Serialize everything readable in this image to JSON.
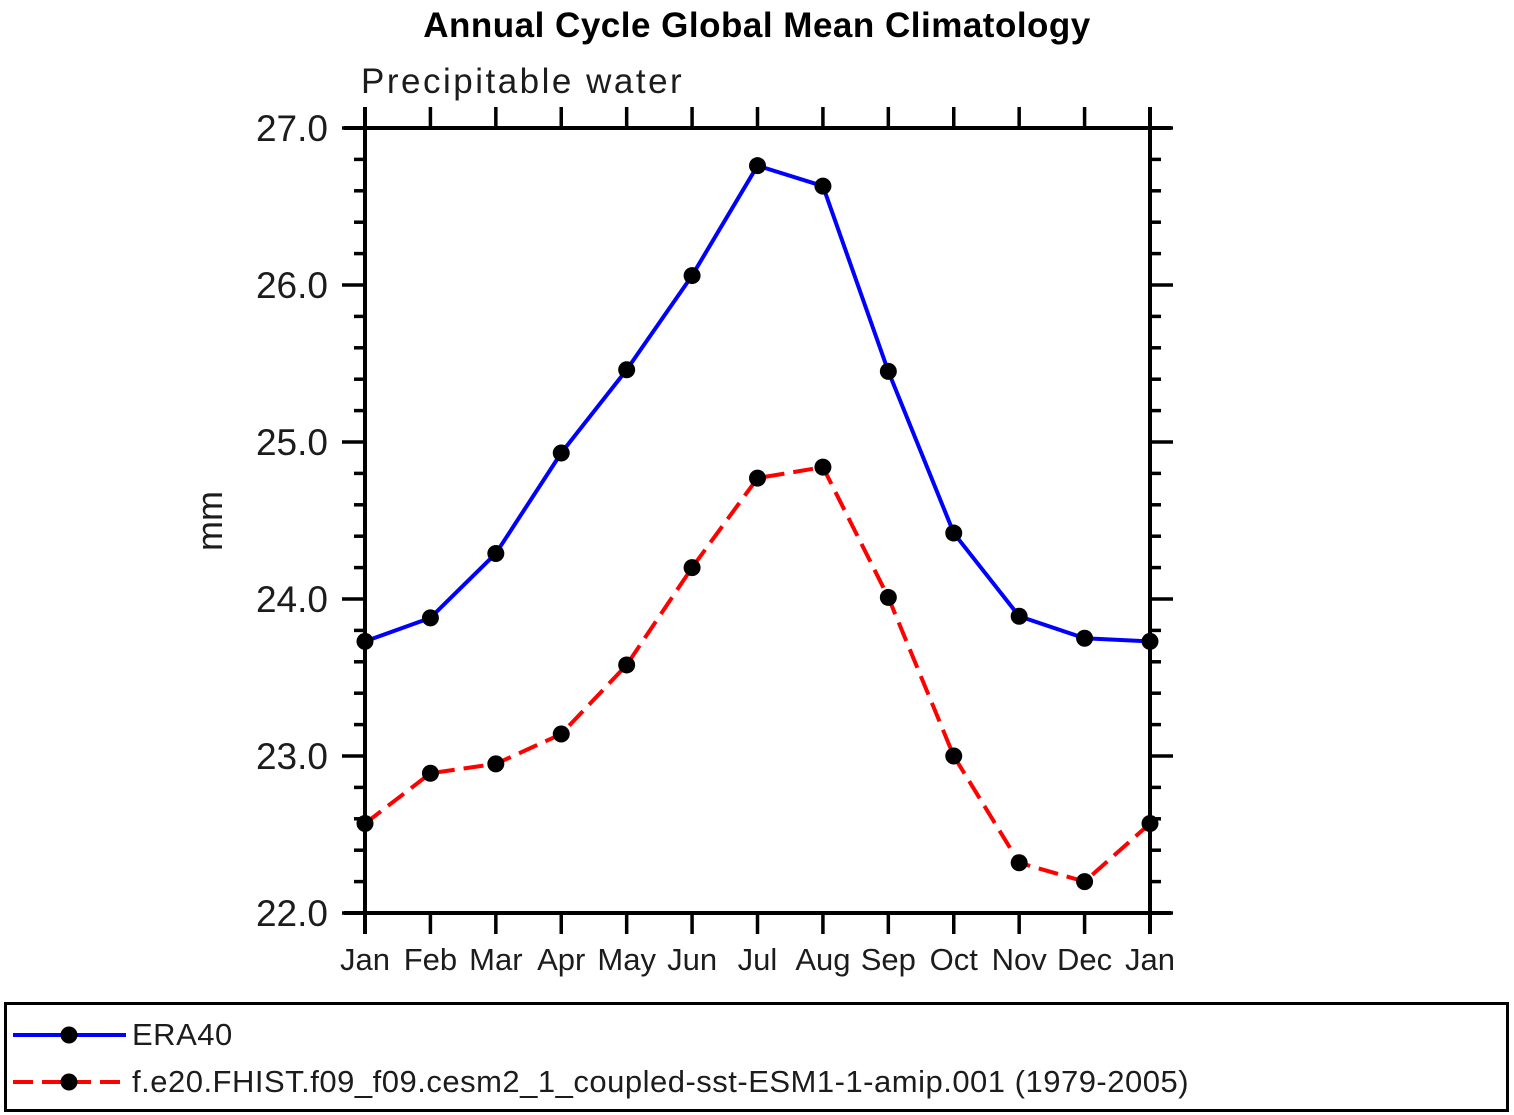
{
  "page_title": "Annual Cycle Global Mean Climatology",
  "chart_data": {
    "type": "line",
    "title": "Annual Cycle Global Mean Climatology",
    "subtitle": "Precipitable water",
    "ylabel": "mm",
    "x_categories": [
      "Jan",
      "Feb",
      "Mar",
      "Apr",
      "May",
      "Jun",
      "Jul",
      "Aug",
      "Sep",
      "Oct",
      "Nov",
      "Dec",
      "Jan"
    ],
    "ylim": [
      22.0,
      27.0
    ],
    "ytick_labels": [
      "22.0",
      "23.0",
      "24.0",
      "25.0",
      "26.0",
      "27.0"
    ],
    "yminor_step": 0.2,
    "grid": false,
    "legend_position": "bottom-box",
    "marker_color": "#000000",
    "series": [
      {
        "name": "ERA40",
        "color": "#0000ff",
        "line_style": "solid",
        "marker": "circle",
        "values": [
          23.73,
          23.88,
          24.29,
          24.93,
          25.46,
          26.06,
          26.76,
          26.63,
          25.45,
          24.42,
          23.89,
          23.75,
          23.73
        ]
      },
      {
        "name": "f.e20.FHIST.f09_f09.cesm2_1_coupled-sst-ESM1-1-amip.001 (1979-2005)",
        "color": "#ff0000",
        "line_style": "dashed",
        "marker": "circle",
        "values": [
          22.57,
          22.89,
          22.95,
          23.14,
          23.58,
          24.2,
          24.77,
          24.84,
          24.01,
          23.0,
          22.32,
          22.2,
          22.57
        ]
      }
    ]
  }
}
